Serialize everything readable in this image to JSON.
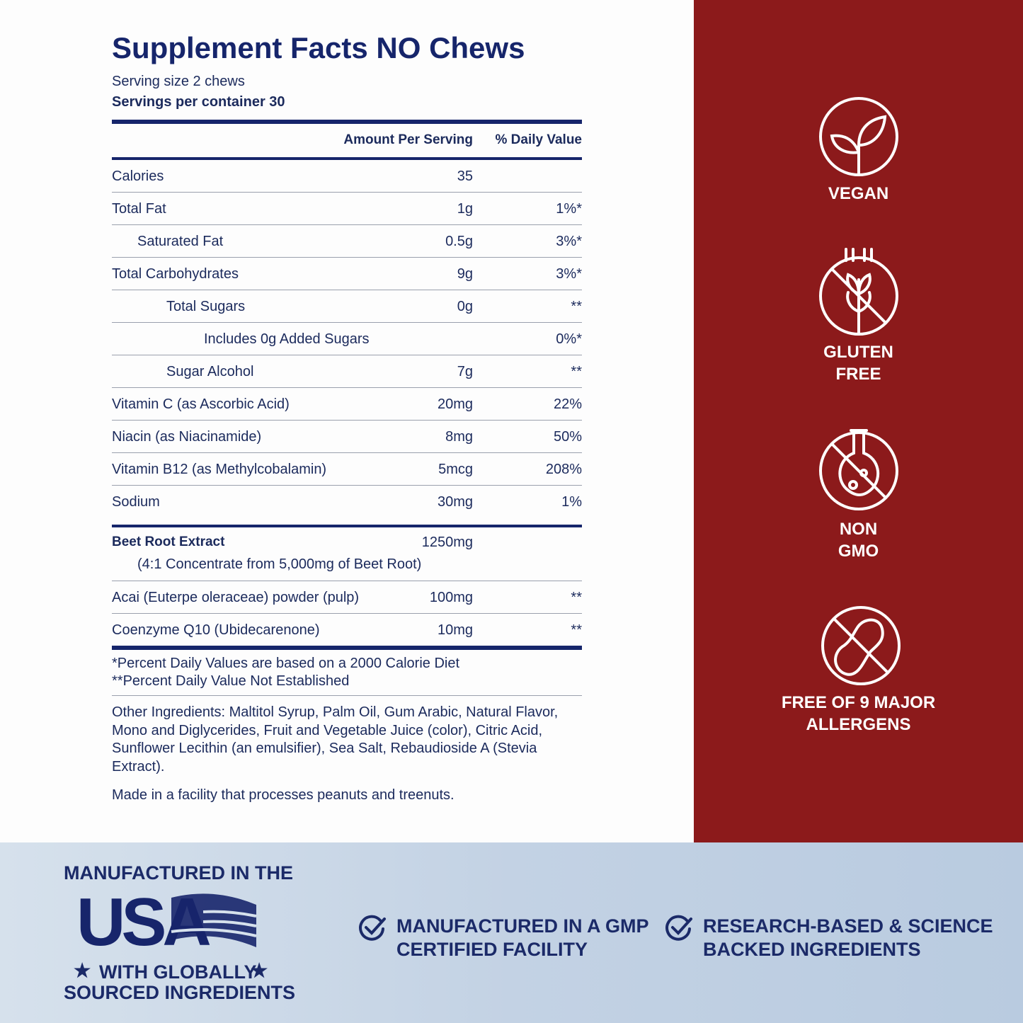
{
  "facts": {
    "title": "Supplement Facts NO Chews",
    "serving_size": "Serving size 2 chews",
    "servings_per_container": "Servings per container 30",
    "header": {
      "amount": "Amount Per Serving",
      "dv": "% Daily Value"
    },
    "rows": [
      {
        "name": "Calories",
        "amount": "35"
      },
      {
        "name": "Total Fat",
        "amount": "1g",
        "dv": "1%*"
      },
      {
        "name": "Saturated Fat",
        "amount": "0.5g",
        "dv": "3%*"
      },
      {
        "name": "Total Carbohydrates",
        "amount": "9g",
        "dv": "3%*"
      },
      {
        "name": "Total Sugars",
        "amount": "0g",
        "dv": "**"
      },
      {
        "name": "Includes 0g Added Sugars",
        "dv": "0%*"
      },
      {
        "name": "Sugar Alcohol",
        "amount": "7g",
        "dv": "**"
      },
      {
        "name": "Vitamin C (as Ascorbic Acid)",
        "amount": "20mg",
        "dv": "22%"
      },
      {
        "name": "Niacin (as Niacinamide)",
        "amount": "8mg",
        "dv": "50%"
      },
      {
        "name": "Vitamin B12 (as Methylcobalamin)",
        "amount": "5mcg",
        "dv": "208%"
      },
      {
        "name": "Sodium",
        "amount": "30mg",
        "dv": "1%"
      }
    ],
    "extract": {
      "name": "Beet Root Extract",
      "amount": "1250mg",
      "detail": "(4:1 Concentrate from 5,000mg of Beet Root)"
    },
    "other_rows": [
      {
        "name": "Acai (Euterpe oleraceae) powder (pulp)",
        "amount": "100mg",
        "dv": "**"
      },
      {
        "name": "Coenzyme Q10 (Ubidecarenone)",
        "amount": "10mg",
        "dv": "**"
      }
    ],
    "footnotes": [
      "*Percent Daily Values are based on a 2000 Calorie Diet",
      "**Percent Daily Value Not Established"
    ],
    "other_ingredients": "Other Ingredients: Maltitol Syrup, Palm Oil, Gum Arabic, Natural Flavor, Mono and Diglycerides, Fruit and Vegetable Juice (color), Citric Acid, Sunflower Lecithin (an emulsifier), Sea Salt, Rebaudioside A (Stevia Extract).",
    "facility": "Made in a facility that processes peanuts and treenuts."
  },
  "badges": [
    [
      "VEGAN"
    ],
    [
      "GLUTEN",
      "FREE"
    ],
    [
      "NON",
      "GMO"
    ],
    [
      "FREE OF 9 MAJOR",
      "ALLERGENS"
    ]
  ],
  "footer": {
    "made_in": "MANUFACTURED IN THE",
    "country": "USA",
    "sourced": [
      "WITH GLOBALLY",
      "SOURCED INGREDIENTS"
    ],
    "claims": [
      [
        "MANUFACTURED IN A GMP",
        "CERTIFIED FACILITY"
      ],
      [
        "RESEARCH-BASED & SCIENCE",
        "BACKED INGREDIENTS"
      ]
    ]
  }
}
